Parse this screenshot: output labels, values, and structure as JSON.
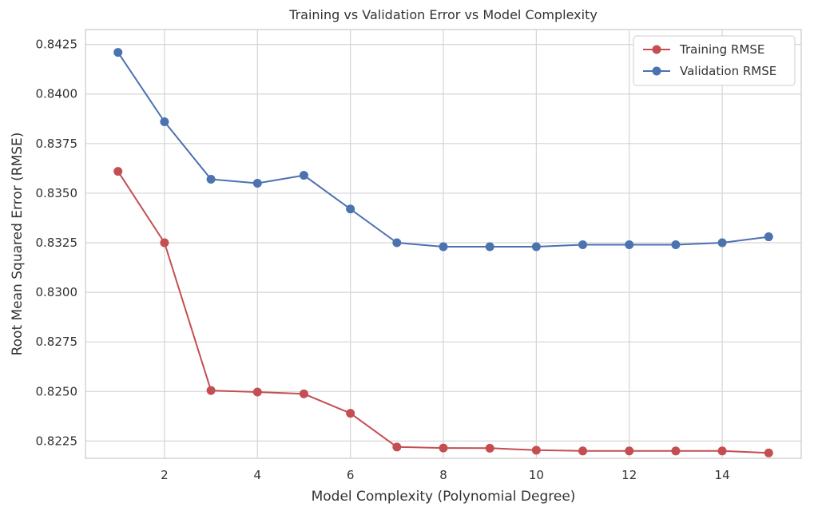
{
  "chart_data": {
    "type": "line",
    "title": "Training vs Validation Error vs Model Complexity",
    "xlabel": "Model Complexity (Polynomial Degree)",
    "ylabel": "Root Mean Squared Error (RMSE)",
    "xlim": [
      0.3,
      15.7
    ],
    "ylim": [
      0.82163,
      0.84325
    ],
    "x_ticks": [
      2,
      4,
      6,
      8,
      10,
      12,
      14
    ],
    "x_tick_labels": [
      "2",
      "4",
      "6",
      "8",
      "10",
      "12",
      "14"
    ],
    "y_ticks": [
      0.8225,
      0.825,
      0.8275,
      0.83,
      0.8325,
      0.835,
      0.8375,
      0.84,
      0.8425
    ],
    "y_tick_labels": [
      "0.8225",
      "0.8250",
      "0.8275",
      "0.8300",
      "0.8325",
      "0.8350",
      "0.8375",
      "0.8400",
      "0.8425"
    ],
    "grid": true,
    "legend_position": "top-right",
    "x": [
      1,
      2,
      3,
      4,
      5,
      6,
      7,
      8,
      9,
      10,
      11,
      12,
      13,
      14,
      15
    ],
    "series": [
      {
        "name": "Training RMSE",
        "color": "#c44e52",
        "values": [
          0.8361,
          0.8325,
          0.82505,
          0.82497,
          0.82488,
          0.8239,
          0.8222,
          0.82215,
          0.82214,
          0.82204,
          0.822,
          0.822,
          0.822,
          0.822,
          0.8219
        ]
      },
      {
        "name": "Validation RMSE",
        "color": "#4c72b0",
        "values": [
          0.8421,
          0.8386,
          0.8357,
          0.8355,
          0.8359,
          0.8342,
          0.8325,
          0.8323,
          0.8323,
          0.8323,
          0.8324,
          0.8324,
          0.8324,
          0.8325,
          0.8328
        ]
      }
    ]
  }
}
